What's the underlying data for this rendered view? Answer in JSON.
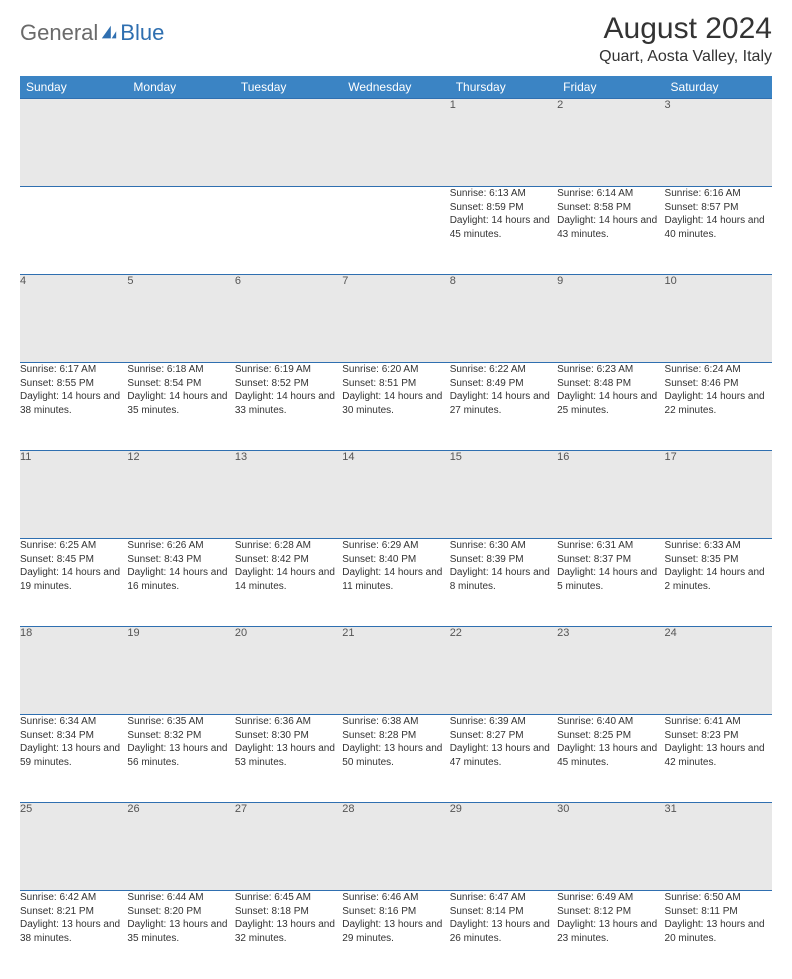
{
  "brand": {
    "general": "General",
    "blue": "Blue"
  },
  "title": "August 2024",
  "location": "Quart, Aosta Valley, Italy",
  "colors": {
    "header_bg": "#3b84c4",
    "header_text": "#ffffff",
    "border": "#2f6fb0",
    "daynum_bg": "#e8e8e8",
    "daynum_text": "#555555",
    "body_text": "#333333",
    "logo_gray": "#6a6a6a",
    "logo_blue": "#2f6fb0",
    "page_bg": "#ffffff"
  },
  "columns": [
    "Sunday",
    "Monday",
    "Tuesday",
    "Wednesday",
    "Thursday",
    "Friday",
    "Saturday"
  ],
  "weeks": [
    [
      null,
      null,
      null,
      null,
      {
        "d": "1",
        "sr": "6:13 AM",
        "ss": "8:59 PM",
        "dl": "14 hours and 45 minutes."
      },
      {
        "d": "2",
        "sr": "6:14 AM",
        "ss": "8:58 PM",
        "dl": "14 hours and 43 minutes."
      },
      {
        "d": "3",
        "sr": "6:16 AM",
        "ss": "8:57 PM",
        "dl": "14 hours and 40 minutes."
      }
    ],
    [
      {
        "d": "4",
        "sr": "6:17 AM",
        "ss": "8:55 PM",
        "dl": "14 hours and 38 minutes."
      },
      {
        "d": "5",
        "sr": "6:18 AM",
        "ss": "8:54 PM",
        "dl": "14 hours and 35 minutes."
      },
      {
        "d": "6",
        "sr": "6:19 AM",
        "ss": "8:52 PM",
        "dl": "14 hours and 33 minutes."
      },
      {
        "d": "7",
        "sr": "6:20 AM",
        "ss": "8:51 PM",
        "dl": "14 hours and 30 minutes."
      },
      {
        "d": "8",
        "sr": "6:22 AM",
        "ss": "8:49 PM",
        "dl": "14 hours and 27 minutes."
      },
      {
        "d": "9",
        "sr": "6:23 AM",
        "ss": "8:48 PM",
        "dl": "14 hours and 25 minutes."
      },
      {
        "d": "10",
        "sr": "6:24 AM",
        "ss": "8:46 PM",
        "dl": "14 hours and 22 minutes."
      }
    ],
    [
      {
        "d": "11",
        "sr": "6:25 AM",
        "ss": "8:45 PM",
        "dl": "14 hours and 19 minutes."
      },
      {
        "d": "12",
        "sr": "6:26 AM",
        "ss": "8:43 PM",
        "dl": "14 hours and 16 minutes."
      },
      {
        "d": "13",
        "sr": "6:28 AM",
        "ss": "8:42 PM",
        "dl": "14 hours and 14 minutes."
      },
      {
        "d": "14",
        "sr": "6:29 AM",
        "ss": "8:40 PM",
        "dl": "14 hours and 11 minutes."
      },
      {
        "d": "15",
        "sr": "6:30 AM",
        "ss": "8:39 PM",
        "dl": "14 hours and 8 minutes."
      },
      {
        "d": "16",
        "sr": "6:31 AM",
        "ss": "8:37 PM",
        "dl": "14 hours and 5 minutes."
      },
      {
        "d": "17",
        "sr": "6:33 AM",
        "ss": "8:35 PM",
        "dl": "14 hours and 2 minutes."
      }
    ],
    [
      {
        "d": "18",
        "sr": "6:34 AM",
        "ss": "8:34 PM",
        "dl": "13 hours and 59 minutes."
      },
      {
        "d": "19",
        "sr": "6:35 AM",
        "ss": "8:32 PM",
        "dl": "13 hours and 56 minutes."
      },
      {
        "d": "20",
        "sr": "6:36 AM",
        "ss": "8:30 PM",
        "dl": "13 hours and 53 minutes."
      },
      {
        "d": "21",
        "sr": "6:38 AM",
        "ss": "8:28 PM",
        "dl": "13 hours and 50 minutes."
      },
      {
        "d": "22",
        "sr": "6:39 AM",
        "ss": "8:27 PM",
        "dl": "13 hours and 47 minutes."
      },
      {
        "d": "23",
        "sr": "6:40 AM",
        "ss": "8:25 PM",
        "dl": "13 hours and 45 minutes."
      },
      {
        "d": "24",
        "sr": "6:41 AM",
        "ss": "8:23 PM",
        "dl": "13 hours and 42 minutes."
      }
    ],
    [
      {
        "d": "25",
        "sr": "6:42 AM",
        "ss": "8:21 PM",
        "dl": "13 hours and 38 minutes."
      },
      {
        "d": "26",
        "sr": "6:44 AM",
        "ss": "8:20 PM",
        "dl": "13 hours and 35 minutes."
      },
      {
        "d": "27",
        "sr": "6:45 AM",
        "ss": "8:18 PM",
        "dl": "13 hours and 32 minutes."
      },
      {
        "d": "28",
        "sr": "6:46 AM",
        "ss": "8:16 PM",
        "dl": "13 hours and 29 minutes."
      },
      {
        "d": "29",
        "sr": "6:47 AM",
        "ss": "8:14 PM",
        "dl": "13 hours and 26 minutes."
      },
      {
        "d": "30",
        "sr": "6:49 AM",
        "ss": "8:12 PM",
        "dl": "13 hours and 23 minutes."
      },
      {
        "d": "31",
        "sr": "6:50 AM",
        "ss": "8:11 PM",
        "dl": "13 hours and 20 minutes."
      }
    ]
  ],
  "labels": {
    "sunrise": "Sunrise: ",
    "sunset": "Sunset: ",
    "daylight": "Daylight: "
  }
}
